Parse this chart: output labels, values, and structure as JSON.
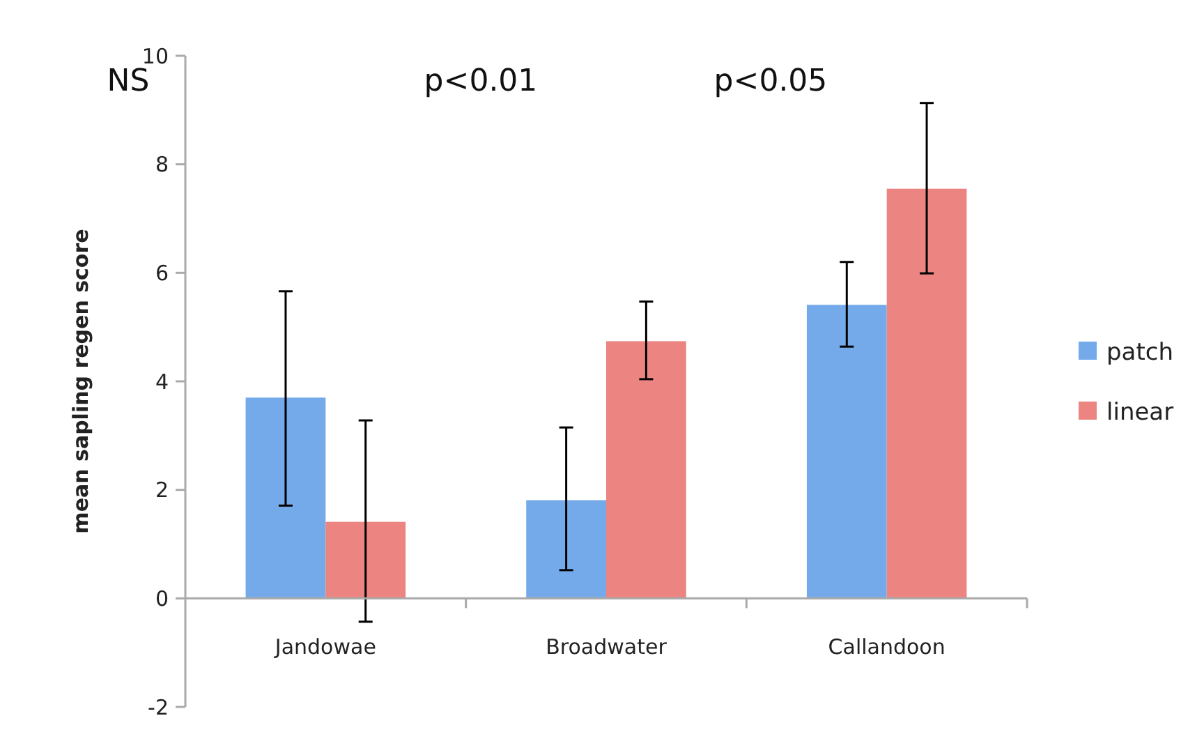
{
  "chart_data": {
    "type": "bar",
    "ylabel": "mean sapling regen score",
    "categories": [
      "Jandowae",
      "Broadwater",
      "Callandoon"
    ],
    "series": [
      {
        "name": "patch",
        "color": "#74aaea",
        "values": [
          3.7,
          1.81,
          5.41
        ],
        "errors": [
          [
            1.71,
            5.66
          ],
          [
            0.52,
            3.15
          ],
          [
            4.64,
            6.2
          ]
        ]
      },
      {
        "name": "linear",
        "color": "#ec8481",
        "values": [
          1.41,
          4.74,
          7.55
        ],
        "errors": [
          [
            -0.43,
            3.28
          ],
          [
            4.04,
            5.47
          ],
          [
            5.99,
            9.13
          ]
        ]
      }
    ],
    "ylim": [
      -2,
      10
    ],
    "yticks": [
      -2,
      0,
      2,
      4,
      6,
      8,
      10
    ],
    "grid": false,
    "legend": "right",
    "annotations": [
      "NS",
      "p<0.01",
      "p<0.05"
    ]
  }
}
